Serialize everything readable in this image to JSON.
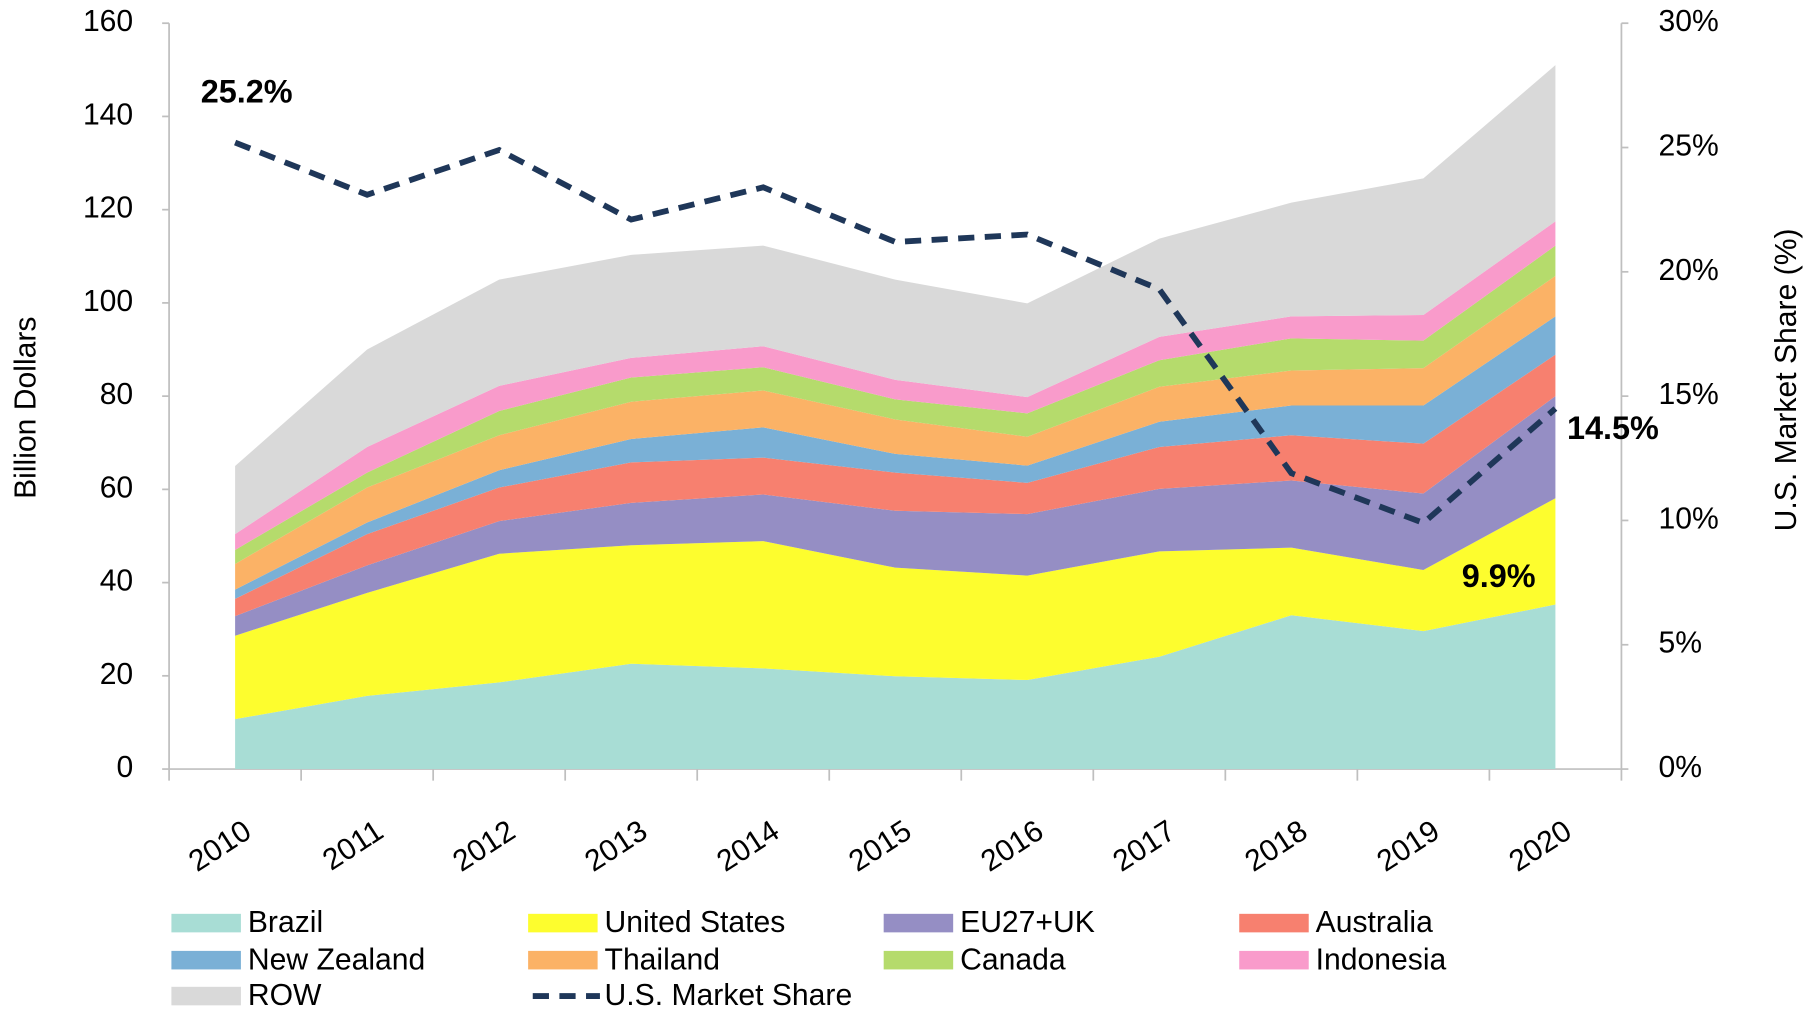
{
  "chart_data": {
    "type": "area",
    "ylabel": "Billion Dollars",
    "y2label": "U.S. Market Share (%)",
    "categories": [
      "2010",
      "2011",
      "2012",
      "2013",
      "2014",
      "2015",
      "2016",
      "2017",
      "2018",
      "2019",
      "2020"
    ],
    "ylim": [
      0,
      160
    ],
    "yticks": [
      0,
      20,
      40,
      60,
      80,
      100,
      120,
      140,
      160
    ],
    "y2lim": [
      0,
      30
    ],
    "y2ticks": [
      {
        "value": 0,
        "label": "0%"
      },
      {
        "value": 5,
        "label": "5%"
      },
      {
        "value": 10,
        "label": "10%"
      },
      {
        "value": 15,
        "label": "15%"
      },
      {
        "value": 20,
        "label": "20%"
      },
      {
        "value": 25,
        "label": "25%"
      },
      {
        "value": 30,
        "label": "30%"
      }
    ],
    "stacked": true,
    "legend": "bottom",
    "series": [
      {
        "name": "Brazil",
        "color": "#a8ddd5",
        "values": [
          10.7,
          15.7,
          18.6,
          22.6,
          21.6,
          19.9,
          19.1,
          24.1,
          33.0,
          29.6,
          35.3
        ]
      },
      {
        "name": "United States",
        "color": "#fdfd2e",
        "values": [
          17.9,
          22.1,
          27.6,
          25.4,
          27.3,
          23.3,
          22.4,
          22.6,
          14.5,
          13.1,
          22.8
        ]
      },
      {
        "name": "EU27+UK",
        "color": "#958ec4",
        "values": [
          4.2,
          5.9,
          7.0,
          9.1,
          10.0,
          12.2,
          13.2,
          13.4,
          14.4,
          16.4,
          21.9
        ]
      },
      {
        "name": "Australia",
        "color": "#f7806f",
        "values": [
          3.7,
          6.7,
          7.2,
          8.7,
          7.9,
          8.2,
          6.7,
          9.0,
          9.7,
          10.7,
          8.9
        ]
      },
      {
        "name": "New Zealand",
        "color": "#7ab0d6",
        "values": [
          2.0,
          2.5,
          3.7,
          5.0,
          6.5,
          4.0,
          3.7,
          5.4,
          6.4,
          8.2,
          8.2
        ]
      },
      {
        "name": "Thailand",
        "color": "#fbb266",
        "values": [
          5.5,
          7.5,
          7.5,
          8.0,
          7.9,
          7.4,
          6.2,
          7.5,
          7.5,
          8.0,
          8.7
        ]
      },
      {
        "name": "Canada",
        "color": "#b5db6c",
        "values": [
          3.0,
          3.2,
          5.2,
          5.2,
          5.0,
          4.3,
          5.0,
          5.7,
          6.9,
          5.9,
          6.5
        ]
      },
      {
        "name": "Indonesia",
        "color": "#f99bcb",
        "values": [
          3.4,
          5.5,
          5.4,
          4.2,
          4.5,
          4.2,
          3.5,
          5.0,
          4.7,
          5.5,
          5.2
        ]
      },
      {
        "name": "ROW",
        "color": "#d9d9d9",
        "values": [
          14.6,
          20.9,
          22.8,
          22.1,
          21.6,
          21.5,
          20.1,
          21.1,
          24.4,
          29.3,
          33.5
        ]
      },
      {
        "name": "U.S. Market Share",
        "color": "#1f3759",
        "axis": "y2",
        "dashed": true,
        "values": [
          25.2,
          23.1,
          24.9,
          22.1,
          23.4,
          21.2,
          21.5,
          19.3,
          11.9,
          9.9,
          14.5
        ],
        "value_labels": [
          "25.2%",
          null,
          null,
          null,
          null,
          null,
          null,
          null,
          null,
          "9.9%",
          "14.5%"
        ]
      }
    ]
  }
}
